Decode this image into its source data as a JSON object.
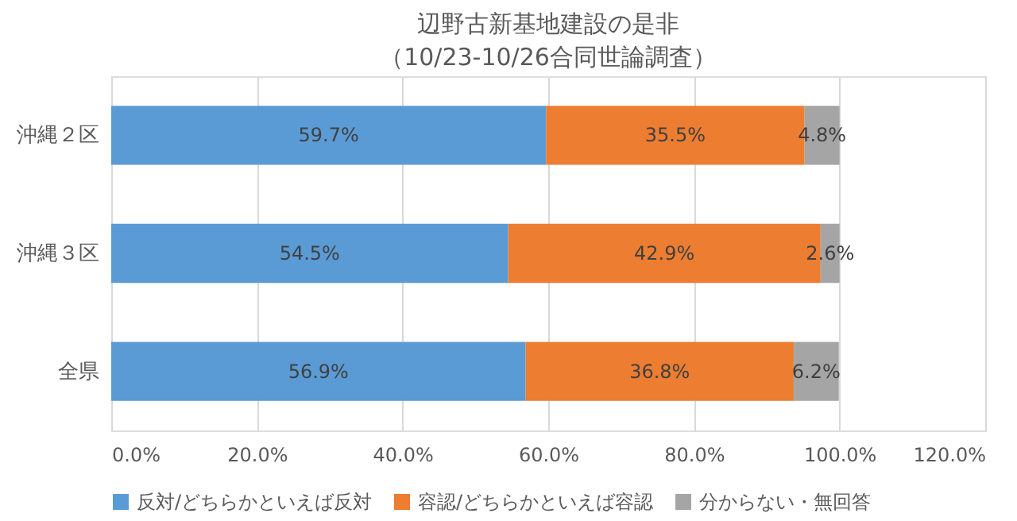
{
  "chart_data": {
    "type": "bar",
    "orientation": "horizontal",
    "stacked": true,
    "title": "辺野古新基地建設の是非",
    "subtitle": "（10/23-10/26合同世論調査）",
    "categories": [
      "沖縄２区",
      "沖縄３区",
      "全県"
    ],
    "series": [
      {
        "name": "反対/どちらかといえば反対",
        "color": "#5b9bd5",
        "values": [
          59.7,
          54.5,
          56.9
        ],
        "value_labels": [
          "59.7%",
          "54.5%",
          "56.9%"
        ]
      },
      {
        "name": "容認/どちらかといえば容認",
        "color": "#ed7d31",
        "values": [
          35.5,
          42.9,
          36.8
        ],
        "value_labels": [
          "35.5%",
          "42.9%",
          "36.8%"
        ]
      },
      {
        "name": "分からない・無回答",
        "color": "#a5a5a5",
        "values": [
          4.8,
          2.6,
          6.2
        ],
        "value_labels": [
          "4.8%",
          "2.6%",
          "6.2%"
        ]
      }
    ],
    "xlim": [
      0,
      120
    ],
    "xticks": [
      {
        "value": 0,
        "label": "0.0%"
      },
      {
        "value": 20,
        "label": "20.0%"
      },
      {
        "value": 40,
        "label": "40.0%"
      },
      {
        "value": 60,
        "label": "60.0%"
      },
      {
        "value": 80,
        "label": "80.0%"
      },
      {
        "value": 100,
        "label": "100.0%"
      },
      {
        "value": 120,
        "label": "120.0%"
      }
    ],
    "grid": "x",
    "legend": "bottom"
  }
}
